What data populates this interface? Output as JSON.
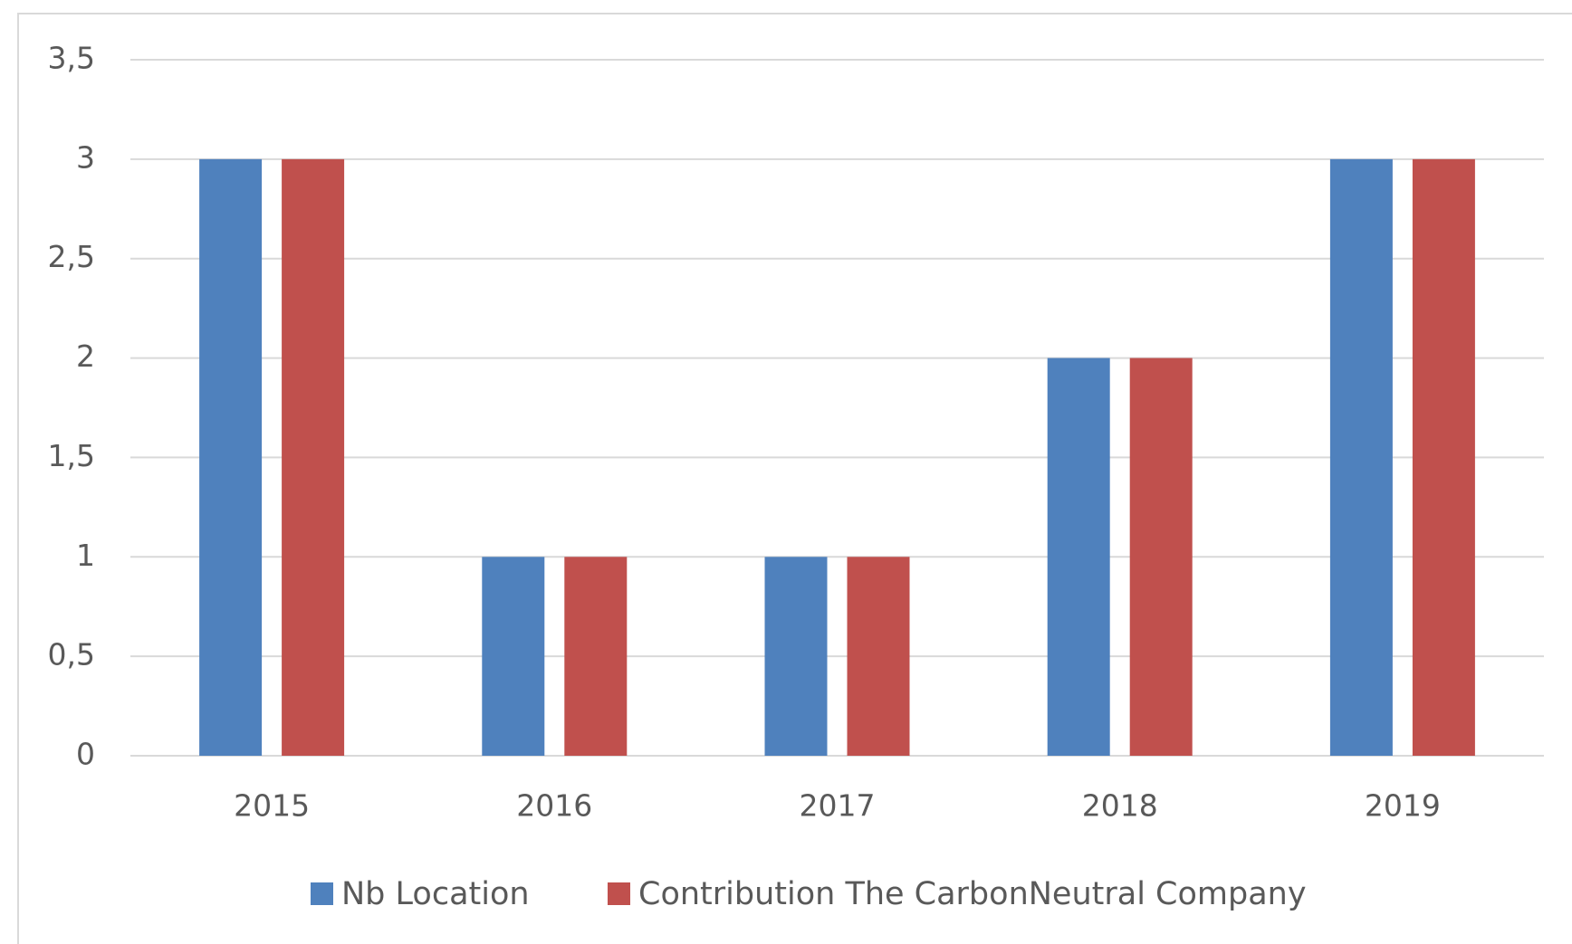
{
  "chart_data": {
    "type": "bar",
    "categories": [
      "2015",
      "2016",
      "2017",
      "2018",
      "2019"
    ],
    "series": [
      {
        "name": "Nb Location",
        "color": "#4f81bd",
        "values": [
          3,
          1,
          1,
          2,
          3
        ]
      },
      {
        "name": "Contribution The CarbonNeutral Company",
        "color": "#c0504d",
        "values": [
          3,
          1,
          1,
          2,
          3
        ]
      }
    ],
    "ylim": [
      0,
      3.5
    ],
    "yticks": [
      0,
      {
        "value": 0.5,
        "label": "0,5"
      },
      1,
      {
        "value": 1.5,
        "label": "1,5"
      },
      2,
      {
        "value": 2.5,
        "label": "2,5"
      },
      3,
      {
        "value": 3.5,
        "label": "3,5"
      }
    ],
    "grid": true,
    "legend": "bottom"
  }
}
